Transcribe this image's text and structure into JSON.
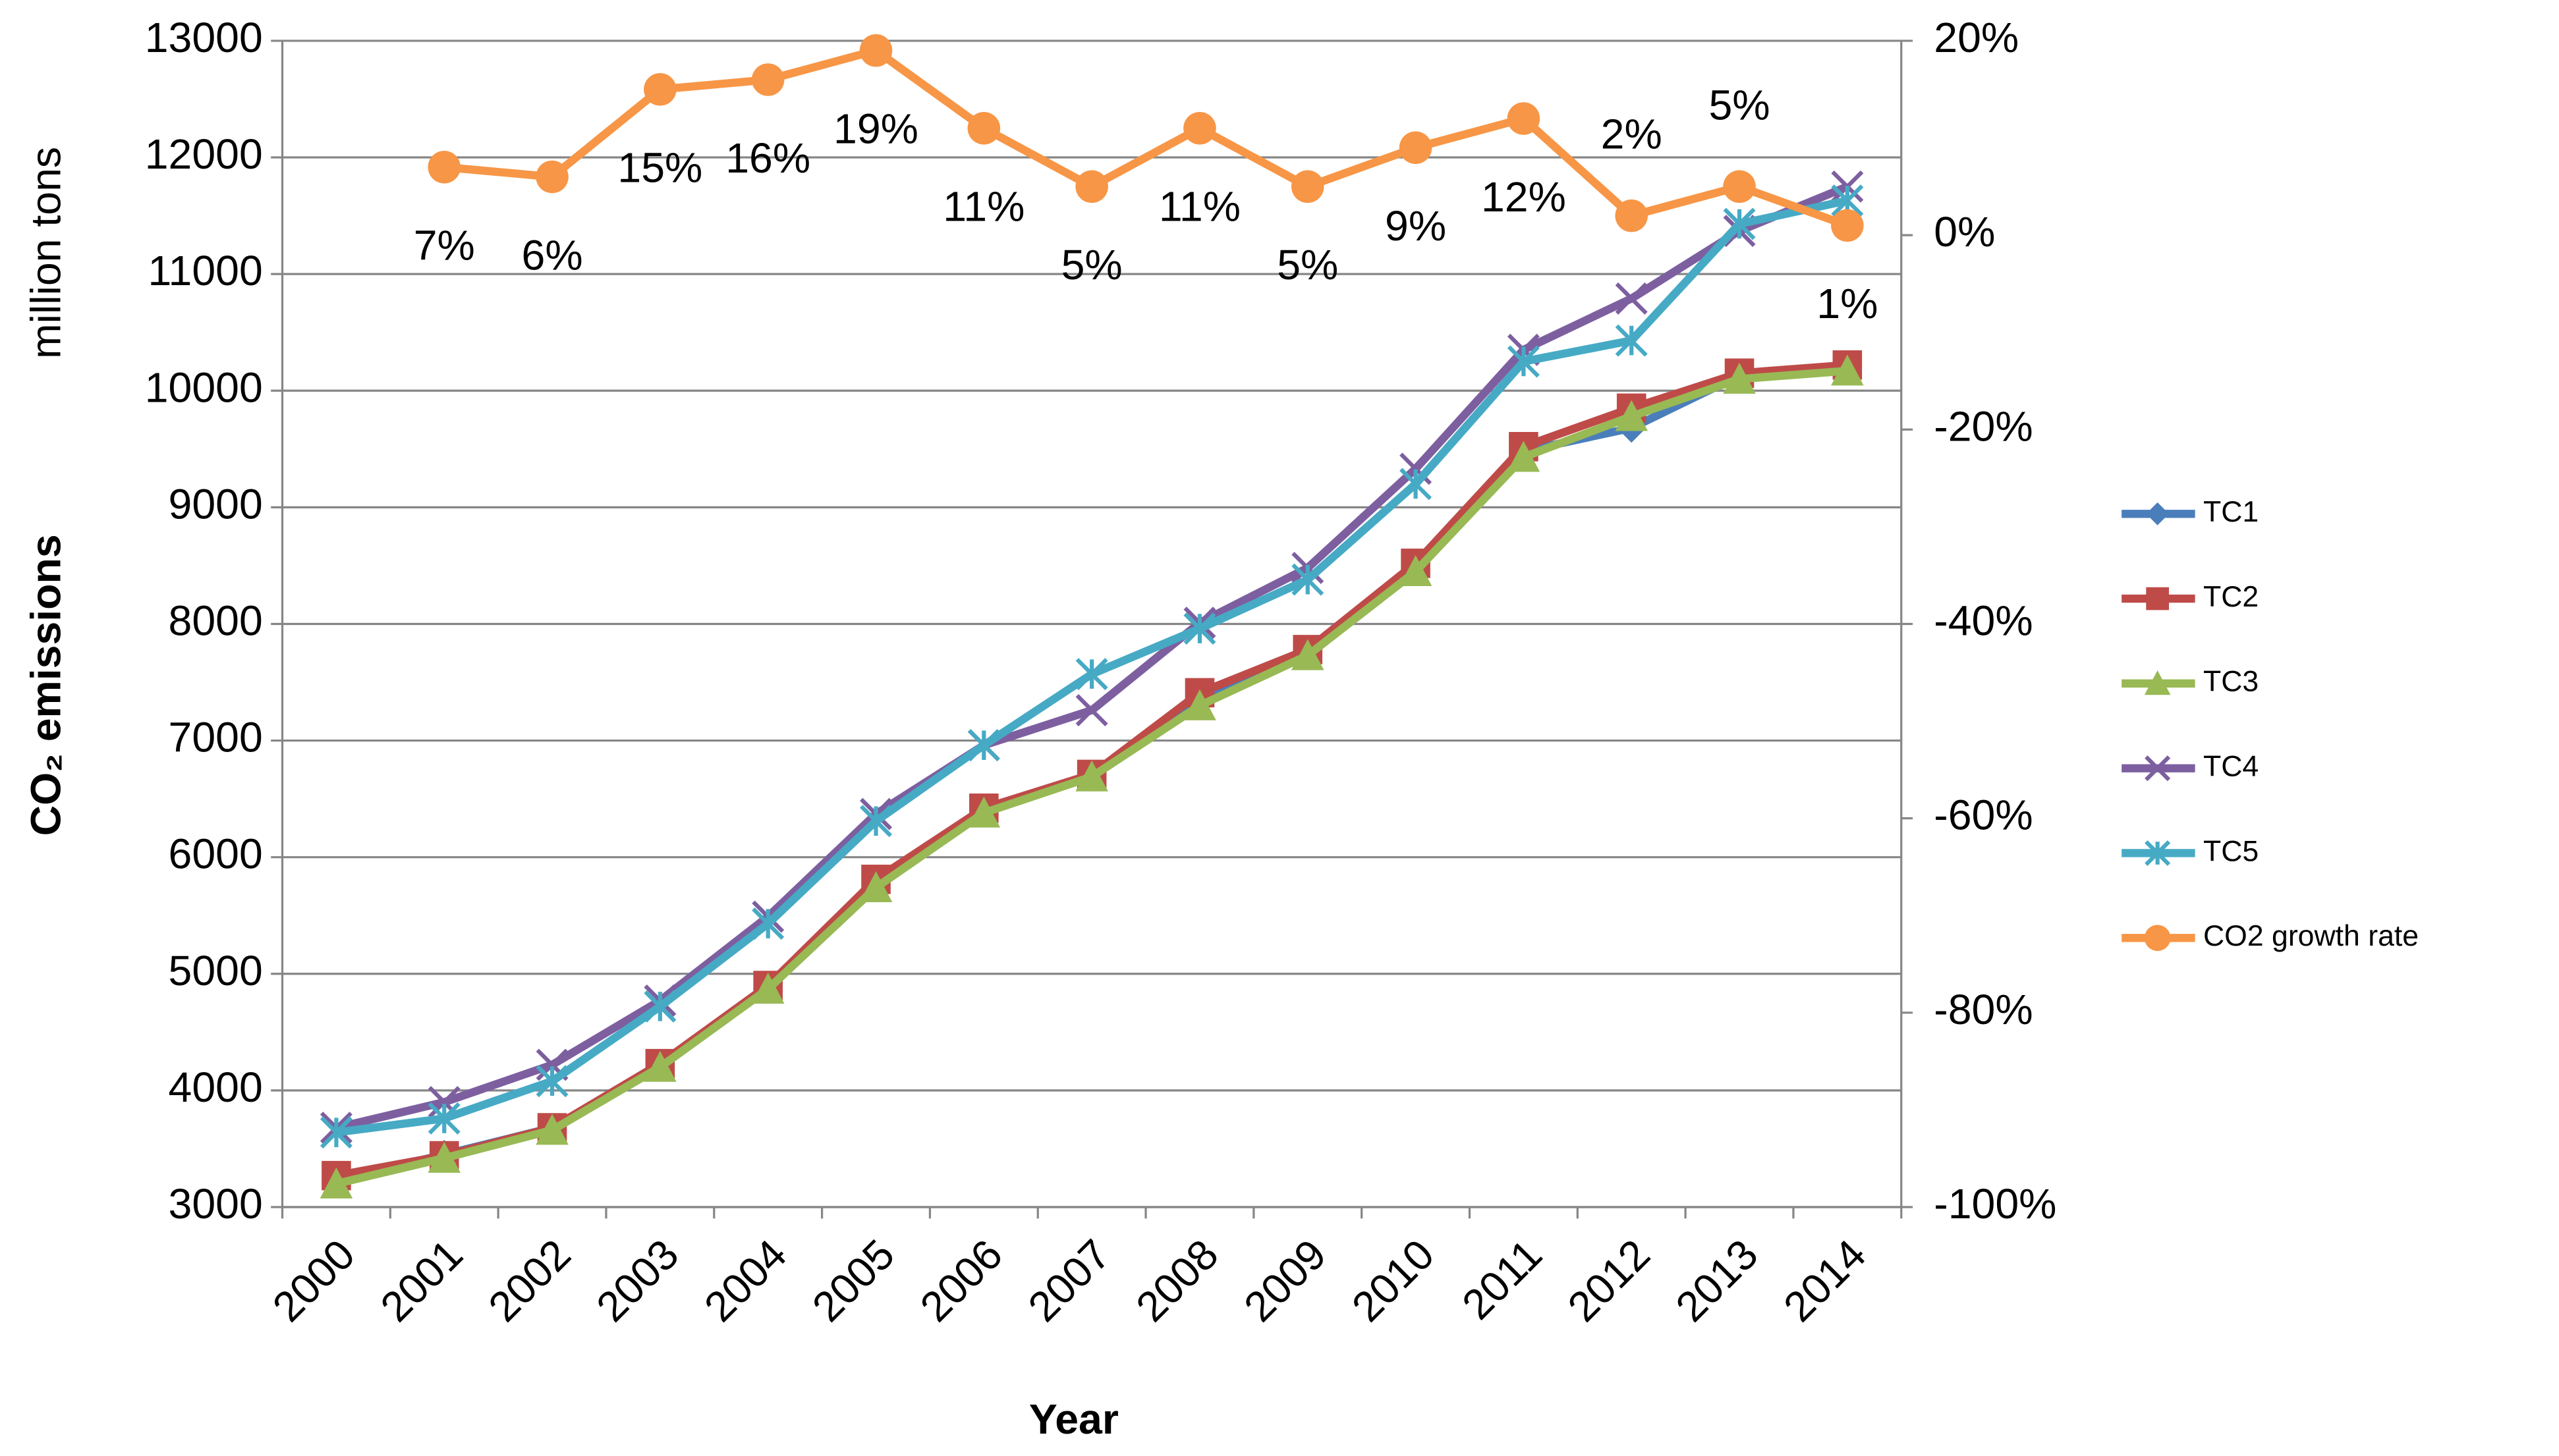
{
  "chart_data": {
    "type": "line",
    "y_label": "CO₂ emissions",
    "y_sublabel": "million tons",
    "x_label": "Year",
    "categories": [
      "2000",
      "2001",
      "2002",
      "2003",
      "2004",
      "2005",
      "2006",
      "2007",
      "2008",
      "2009",
      "2010",
      "2011",
      "2012",
      "2013",
      "2014"
    ],
    "ylim": [
      3000,
      13000
    ],
    "yticks": [
      3000,
      4000,
      5000,
      6000,
      7000,
      8000,
      9000,
      10000,
      11000,
      12000,
      13000
    ],
    "y2lim": [
      -100,
      20
    ],
    "y2ticks": [
      {
        "value": -100,
        "label": "-100%"
      },
      {
        "value": -80,
        "label": "-80%"
      },
      {
        "value": -60,
        "label": "-60%"
      },
      {
        "value": -40,
        "label": "-40%"
      },
      {
        "value": -20,
        "label": "-20%"
      },
      {
        "value": 0,
        "label": "0%"
      },
      {
        "value": 20,
        "label": "20%"
      }
    ],
    "grid": true,
    "legend": "right",
    "series": [
      {
        "name": "TC1",
        "color": "#4a7ebb",
        "marker": "diamond",
        "values": [
          3230,
          3450,
          3680,
          4220,
          4900,
          5780,
          6400,
          6690,
          7380,
          7760,
          8490,
          9480,
          9680,
          10130,
          10200
        ]
      },
      {
        "name": "TC2",
        "color": "#be4b48",
        "marker": "square",
        "values": [
          3270,
          3440,
          3680,
          4230,
          4900,
          5810,
          6420,
          6710,
          7410,
          7780,
          8520,
          9520,
          9850,
          10150,
          10220
        ]
      },
      {
        "name": "TC3",
        "color": "#98b954",
        "marker": "triangle",
        "values": [
          3200,
          3420,
          3660,
          4200,
          4870,
          5740,
          6380,
          6690,
          7300,
          7730,
          8450,
          9430,
          9780,
          10100,
          10170
        ]
      },
      {
        "name": "TC4",
        "color": "#7d5fa0",
        "marker": "x",
        "values": [
          3680,
          3900,
          4220,
          4770,
          5490,
          6370,
          6960,
          7260,
          8010,
          8480,
          9330,
          10350,
          10790,
          11370,
          11750
        ]
      },
      {
        "name": "TC5",
        "color": "#46aac5",
        "marker": "star",
        "values": [
          3640,
          3760,
          4080,
          4720,
          5430,
          6310,
          6960,
          7570,
          7960,
          8380,
          9200,
          10250,
          10430,
          11430,
          11630
        ]
      },
      {
        "name": "CO2 growth rate",
        "color": "#f79646",
        "marker": "circle",
        "axis": "y2",
        "values": [
          null,
          7,
          6,
          15,
          16,
          19,
          11,
          5,
          11,
          5,
          9,
          12,
          2,
          5,
          1
        ],
        "value_labels": [
          null,
          "7%",
          "6%",
          "15%",
          "16%",
          "19%",
          "11%",
          "5%",
          "11%",
          "5%",
          "9%",
          "12%",
          "2%",
          "5%",
          "1%"
        ]
      }
    ]
  }
}
